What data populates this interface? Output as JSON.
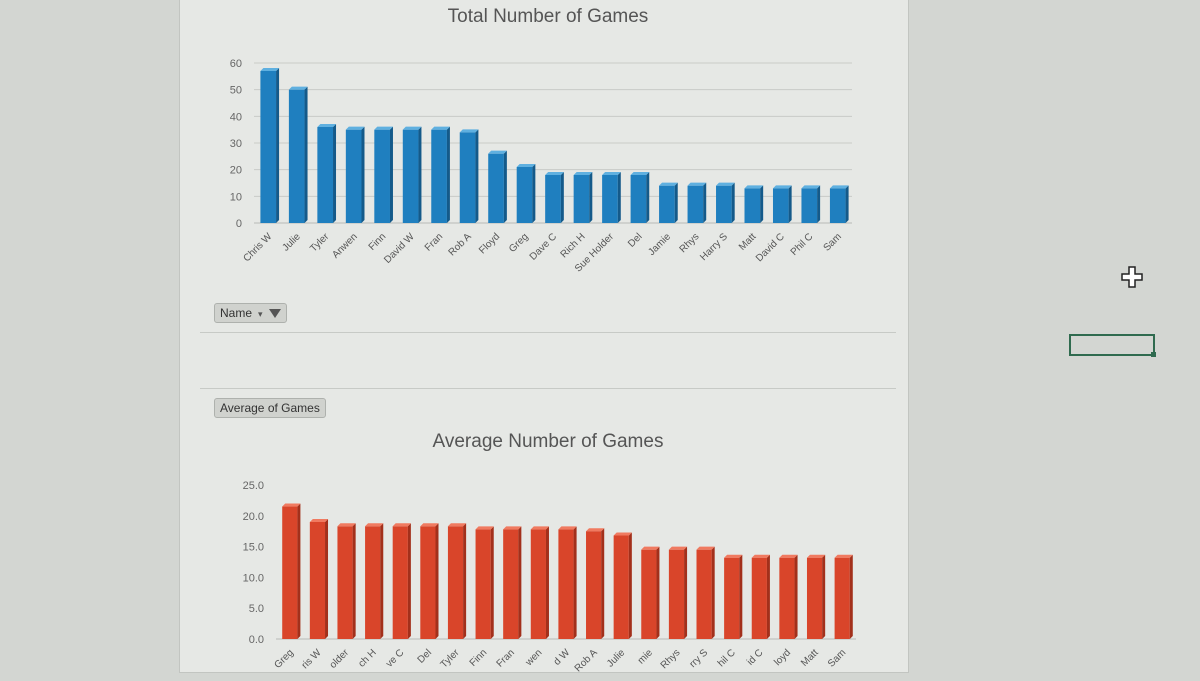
{
  "charts": [
    {
      "title": "Total Number of Games",
      "filter_button": {
        "label": "Name"
      },
      "colors": {
        "bar": "#1f7fbf",
        "bar_side": "#145a8a",
        "bar_top": "#5fb0e0"
      }
    },
    {
      "title": "Average Number of Games",
      "field_button": {
        "label": "Average of Games"
      },
      "colors": {
        "bar": "#d9452a",
        "bar_side": "#a3301b",
        "bar_top": "#f07a60"
      }
    }
  ],
  "chart_data": [
    {
      "type": "bar",
      "title": "Total Number of Games",
      "categories": [
        "Chris W",
        "Julie",
        "Tyler",
        "Anwen",
        "Finn",
        "David W",
        "Fran",
        "Rob A",
        "Floyd",
        "Greg",
        "Dave C",
        "Rich H",
        "Sue Holder",
        "Del",
        "Jamie",
        "Rhys",
        "Harry S",
        "Matt",
        "David C",
        "Phil C",
        "Sam"
      ],
      "values": [
        57,
        50,
        36,
        35,
        35,
        35,
        35,
        34,
        26,
        21,
        18,
        18,
        18,
        18,
        14,
        14,
        14,
        13,
        13,
        13,
        13
      ],
      "ylim": [
        0,
        60
      ],
      "yticks": [
        "0",
        "10",
        "20",
        "30",
        "40",
        "50",
        "60"
      ],
      "grid": true,
      "legend": "none"
    },
    {
      "type": "bar",
      "title": "Average Number of Games",
      "categories": [
        "Greg",
        "Chris W",
        "Sue Holder",
        "Rich H",
        "Dave C",
        "Del",
        "Tyler",
        "Finn",
        "Fran",
        "Anwen",
        "David W",
        "Rob A",
        "Julie",
        "Jamie",
        "Rhys",
        "Harry S",
        "Phil C",
        "David C",
        "Floyd",
        "Matt",
        "Sam"
      ],
      "tick_labels_visible": [
        "Greg",
        "ris W",
        "older",
        "ch H",
        "ve C",
        "Del",
        "Tyler",
        "Finn",
        "Fran",
        "wen",
        "d W",
        "Rob A",
        "Julie",
        "mie",
        "Rhys",
        "rry S",
        "hil C",
        "id C",
        "loyd",
        "Matt",
        "Sam"
      ],
      "values": [
        21.5,
        19.0,
        18.3,
        18.3,
        18.3,
        18.3,
        18.3,
        17.8,
        17.8,
        17.8,
        17.8,
        17.5,
        16.8,
        14.5,
        14.5,
        14.5,
        13.2,
        13.2,
        13.2,
        13.2,
        13.2
      ],
      "ylim": [
        0,
        25
      ],
      "yticks": [
        "0.0",
        "5.0",
        "10.0",
        "15.0",
        "20.0",
        "25.0"
      ],
      "grid": false,
      "legend": "none"
    }
  ]
}
